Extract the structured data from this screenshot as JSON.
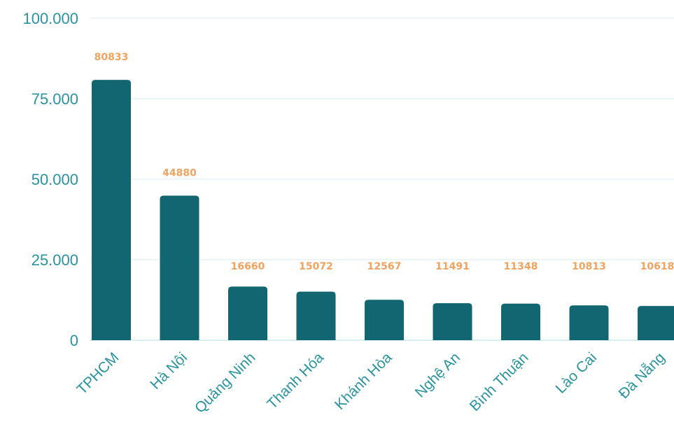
{
  "chart_data": {
    "type": "bar",
    "title": "",
    "xlabel": "",
    "ylabel": "",
    "categories": [
      "TPHCM",
      "Hà Nội",
      "Quảng Ninh",
      "Thanh Hóa",
      "Khánh Hòa",
      "Nghệ An",
      "Bình Thuận",
      "Lào Cai",
      "Đà Nẵng"
    ],
    "series": [
      {
        "values": [
          80833,
          44880,
          16660,
          15072,
          12567,
          11491,
          11348,
          10813,
          10618
        ]
      }
    ],
    "data_labels": [
      "80833",
      "44880",
      "16660",
      "15072",
      "12567",
      "11491",
      "11348",
      "10813",
      "10618"
    ],
    "ylim": [
      0,
      100000
    ],
    "yticks": [
      0,
      25000,
      50000,
      75000,
      100000
    ],
    "ytick_labels": [
      "0",
      "25.000",
      "50.000",
      "75.000",
      "100.000"
    ],
    "grid": true,
    "legend": "none"
  },
  "colors": {
    "bar": "#126672",
    "axis_text": "#2a93a0",
    "data_label": "#f0a25f",
    "grid": "#dcebed",
    "baseline": "#b6dbe0"
  }
}
